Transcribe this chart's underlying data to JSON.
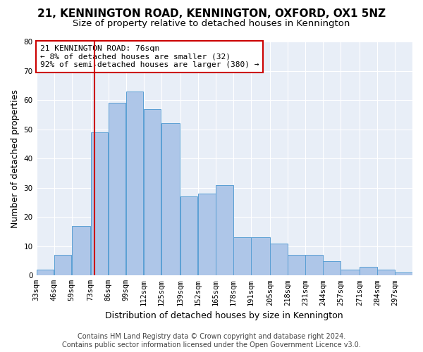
{
  "title": "21, KENNINGTON ROAD, KENNINGTON, OXFORD, OX1 5NZ",
  "subtitle": "Size of property relative to detached houses in Kennington",
  "xlabel": "Distribution of detached houses by size in Kennington",
  "ylabel": "Number of detached properties",
  "categories": [
    "33sqm",
    "46sqm",
    "59sqm",
    "73sqm",
    "86sqm",
    "99sqm",
    "112sqm",
    "125sqm",
    "139sqm",
    "152sqm",
    "165sqm",
    "178sqm",
    "191sqm",
    "205sqm",
    "218sqm",
    "231sqm",
    "244sqm",
    "257sqm",
    "271sqm",
    "284sqm",
    "297sqm"
  ],
  "bar_values": [
    2,
    7,
    17,
    49,
    59,
    63,
    57,
    52,
    27,
    28,
    31,
    13,
    13,
    11,
    7,
    7,
    5,
    2,
    3,
    2,
    1
  ],
  "bin_edges": [
    33,
    46,
    59,
    73,
    86,
    99,
    112,
    125,
    139,
    152,
    165,
    178,
    191,
    205,
    218,
    231,
    244,
    257,
    271,
    284,
    297,
    310
  ],
  "bar_color": "#aec6e8",
  "bar_edge_color": "#5a9fd4",
  "vline_x": 76,
  "vline_color": "#cc0000",
  "annotation_text": "21 KENNINGTON ROAD: 76sqm\n← 8% of detached houses are smaller (32)\n92% of semi-detached houses are larger (380) →",
  "annotation_box_color": "#ffffff",
  "annotation_box_edge": "#cc0000",
  "ylim": [
    0,
    80
  ],
  "yticks": [
    0,
    10,
    20,
    30,
    40,
    50,
    60,
    70,
    80
  ],
  "background_color": "#e8eef7",
  "footer_line1": "Contains HM Land Registry data © Crown copyright and database right 2024.",
  "footer_line2": "Contains public sector information licensed under the Open Government Licence v3.0.",
  "title_fontsize": 11,
  "subtitle_fontsize": 9.5,
  "xlabel_fontsize": 9,
  "ylabel_fontsize": 9,
  "tick_fontsize": 7.5,
  "footer_fontsize": 7
}
